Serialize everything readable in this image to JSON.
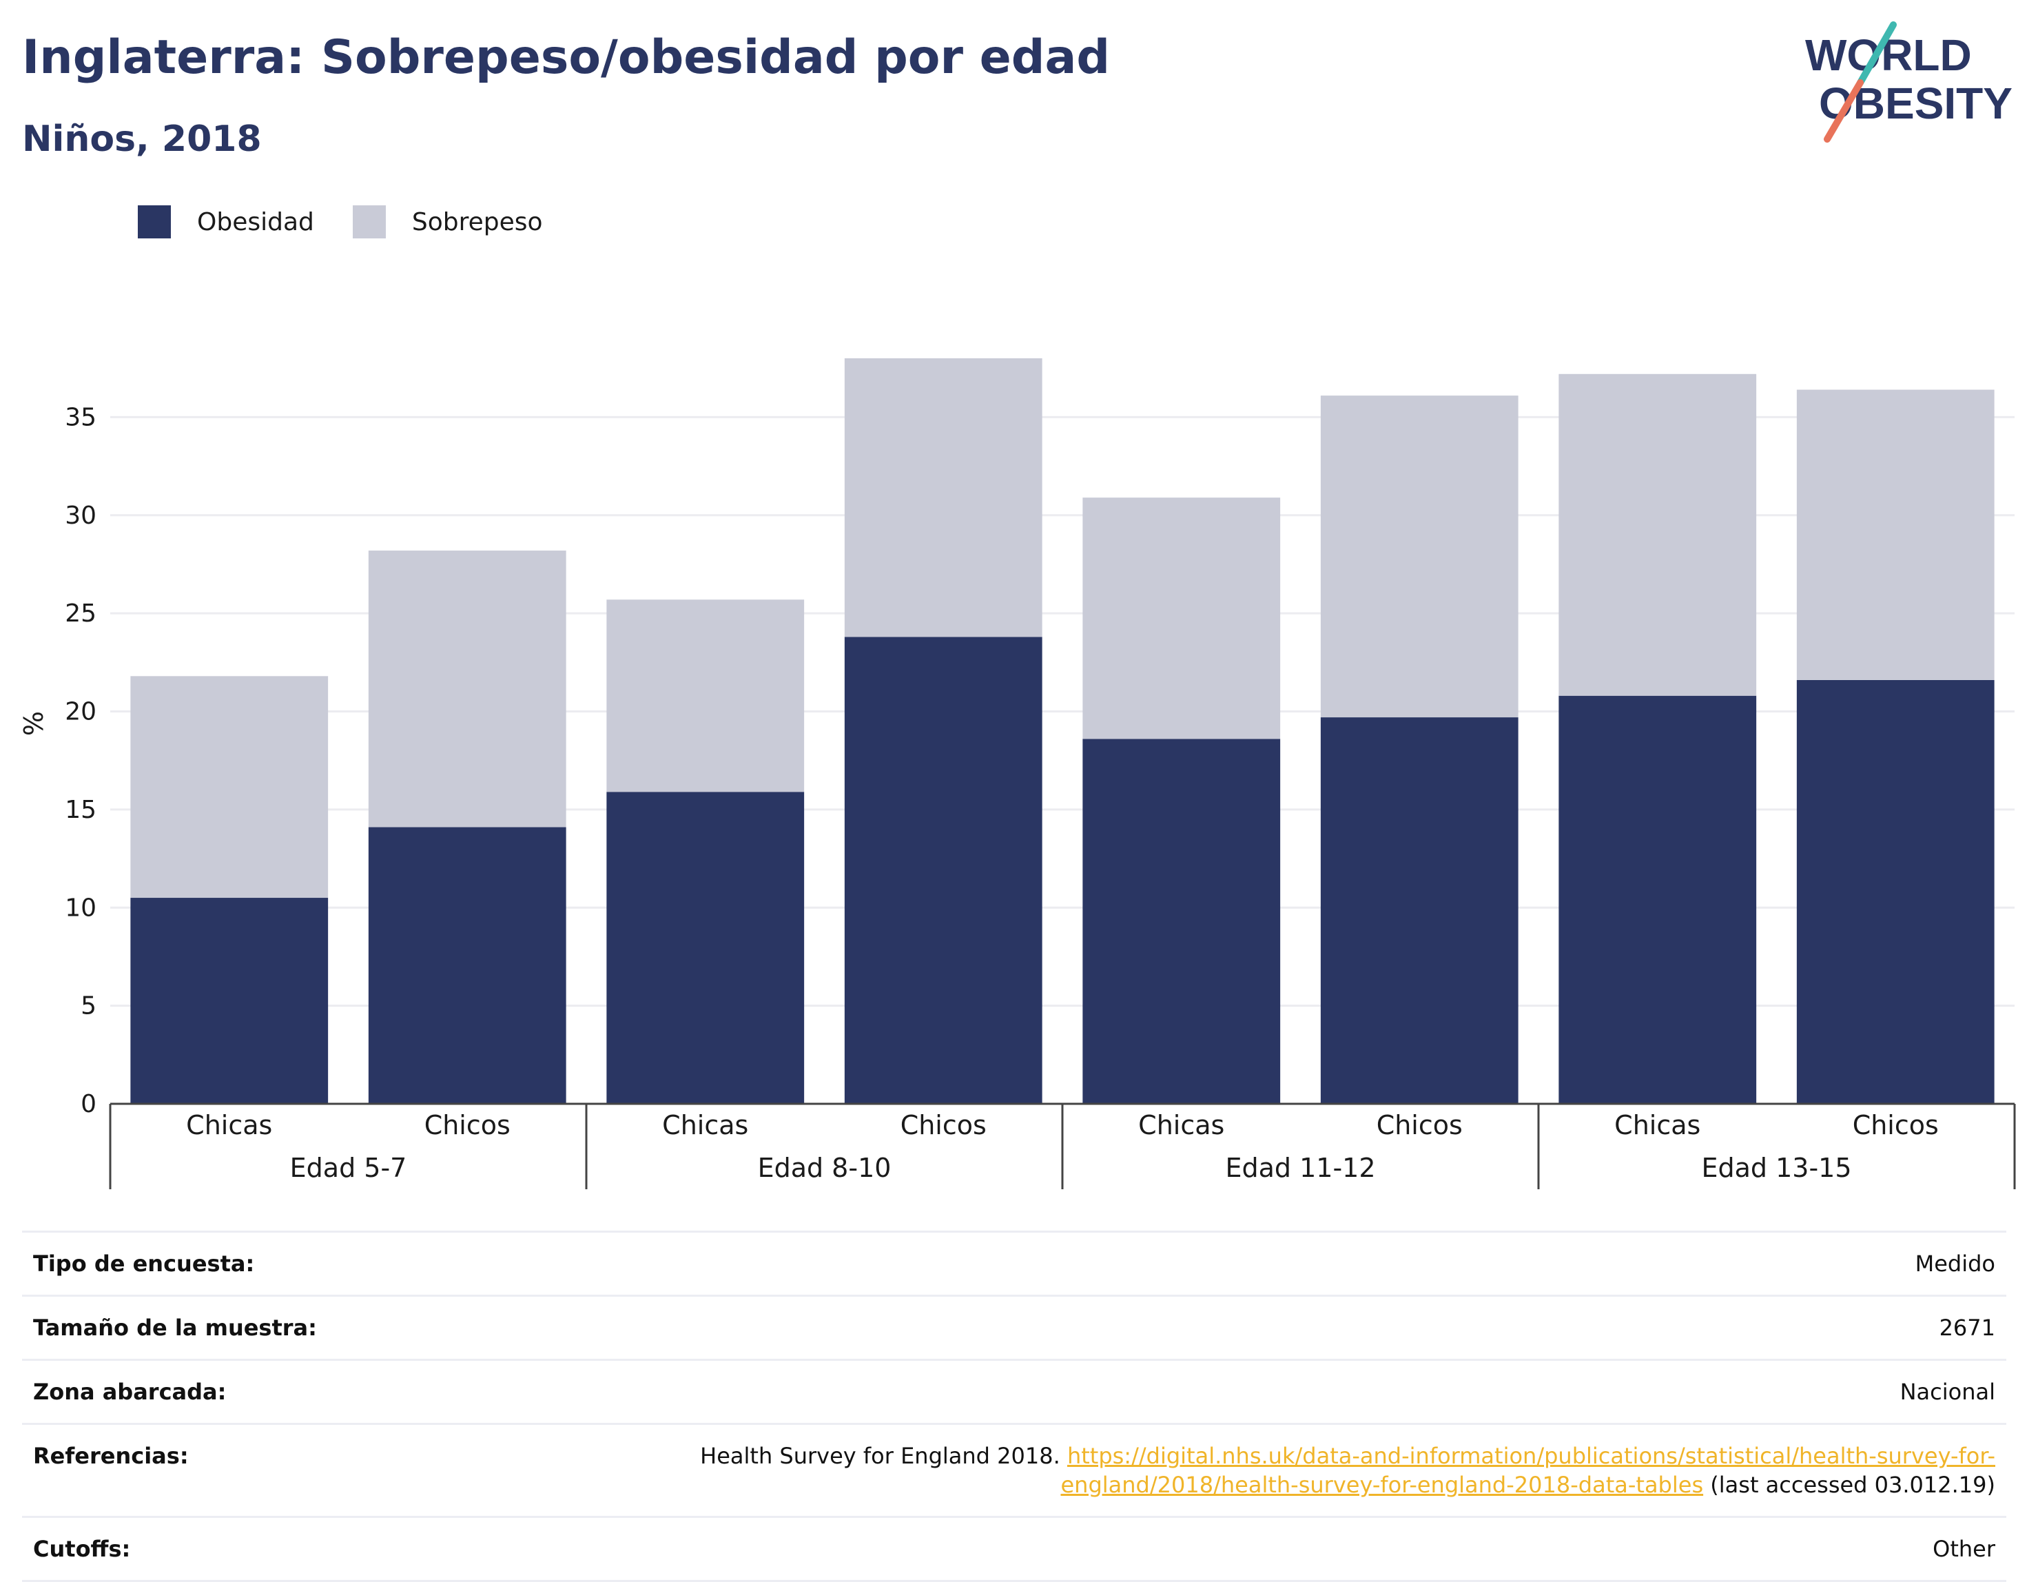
{
  "header": {
    "title": "Inglaterra: Sobrepeso/obesidad por edad",
    "subtitle": "Niños, 2018"
  },
  "logo": {
    "line1": "WORLD",
    "line2": "OBESITY"
  },
  "colors": {
    "obesidad": "#2a3663",
    "sobrepeso": "#c9cbd7",
    "title": "#2a3663",
    "link": "#f0b429",
    "logo_teal": "#3fb8b0",
    "logo_coral": "#e8735a"
  },
  "chart_data": {
    "type": "bar",
    "stacked": true,
    "ylabel": "%",
    "ylim": [
      0,
      38
    ],
    "yticks": [
      0,
      5,
      10,
      15,
      20,
      25,
      30,
      35
    ],
    "grid": true,
    "legend_position": "top-left",
    "categories": [
      "Chicas",
      "Chicos",
      "Chicas",
      "Chicos",
      "Chicas",
      "Chicos",
      "Chicas",
      "Chicos"
    ],
    "groups": [
      {
        "label": "Edad 5-7",
        "span": 2
      },
      {
        "label": "Edad 8-10",
        "span": 2
      },
      {
        "label": "Edad 11-12",
        "span": 2
      },
      {
        "label": "Edad 13-15",
        "span": 2
      }
    ],
    "series": [
      {
        "name": "Obesidad",
        "color": "#2a3663",
        "values": [
          10.5,
          14.1,
          15.9,
          23.8,
          18.6,
          19.7,
          20.8,
          21.6
        ]
      },
      {
        "name": "Sobrepeso",
        "color": "#c9cbd7",
        "values": [
          11.3,
          14.1,
          9.8,
          14.2,
          12.3,
          16.4,
          16.4,
          14.8
        ]
      }
    ]
  },
  "metadata": [
    {
      "label": "Tipo de encuesta:",
      "value": "Medido"
    },
    {
      "label": "Tamaño de la muestra:",
      "value": "2671"
    },
    {
      "label": "Zona abarcada:",
      "value": "Nacional"
    },
    {
      "label": "Referencias:",
      "value_prefix": "Health Survey for England 2018. ",
      "link": "https://digital.nhs.uk/data-and-information/publications/statistical/health-survey-for-england/2018/health-survey-for-england-2018-data-tables",
      "value_suffix": " (last accessed 03.012.19)"
    },
    {
      "label": "Cutoffs:",
      "value": "Other"
    }
  ]
}
